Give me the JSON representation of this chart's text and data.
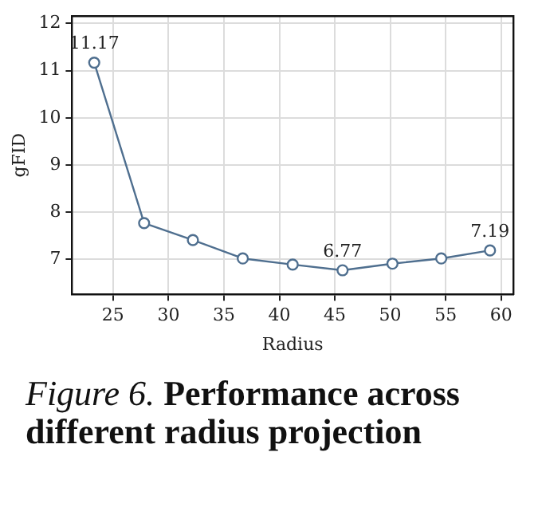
{
  "chart_data": {
    "type": "line",
    "xlabel": "Radius",
    "ylabel": "gFID",
    "x": [
      23.3,
      27.8,
      32.2,
      36.7,
      41.2,
      45.7,
      50.2,
      54.6,
      59.0
    ],
    "series": [
      {
        "color": "#4f6f8f",
        "values": [
          11.17,
          7.77,
          7.41,
          7.02,
          6.89,
          6.77,
          6.91,
          7.02,
          7.19
        ],
        "value_labels": [
          "11.17",
          null,
          null,
          null,
          null,
          "6.77",
          null,
          null,
          "7.19"
        ]
      }
    ],
    "xlim": [
      21.3,
      61.1
    ],
    "xticks": [
      25,
      30,
      35,
      40,
      45,
      50,
      55,
      60
    ],
    "ylim": [
      6.26,
      12.16
    ],
    "yticks": [
      7,
      8,
      9,
      10,
      11,
      12
    ],
    "grid": true,
    "marker": "circle",
    "line_style": "solid",
    "legend": false,
    "annotations": [
      "Figure 6.",
      "Performance across different radius projection"
    ]
  }
}
